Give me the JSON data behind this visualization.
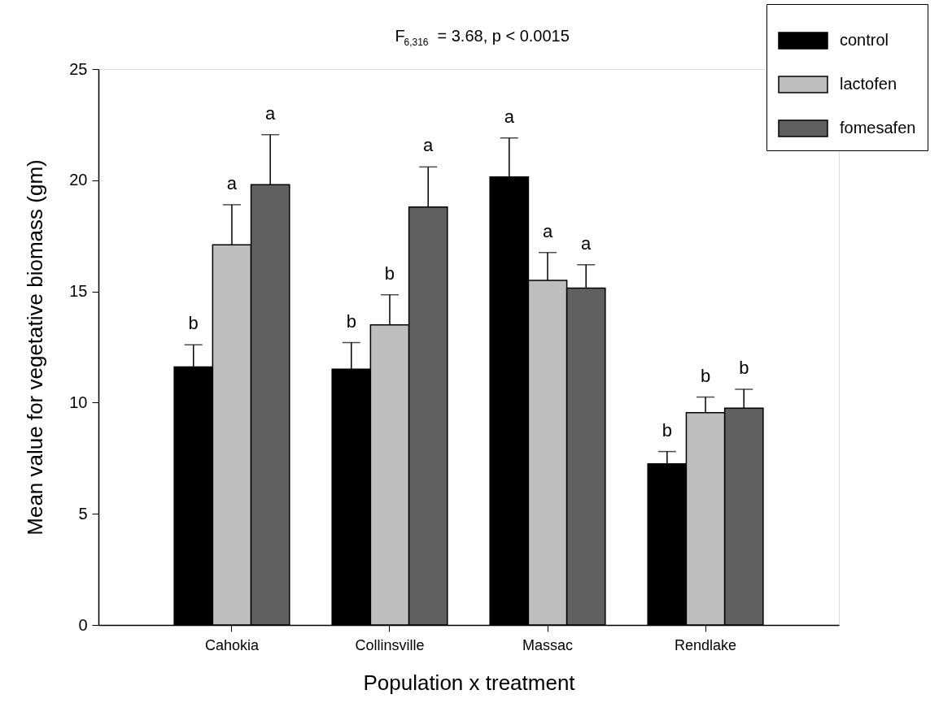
{
  "chart_data": {
    "type": "bar",
    "title": "F$_{6,316}$ = 3.68, p < 0.0015",
    "xlabel": "Population x treatment",
    "ylabel": "Mean value for vegetative biomass (gm)",
    "categories": [
      "Cahokia",
      "Collinsville",
      "Massac",
      "Rendlake"
    ],
    "series": [
      {
        "name": "control",
        "color": "#000000",
        "values": [
          11.6,
          11.5,
          20.15,
          7.25
        ],
        "errors": [
          [
            11.6,
            12.6
          ],
          [
            11.5,
            12.7
          ],
          [
            20.15,
            21.9
          ],
          [
            7.25,
            7.8
          ]
        ]
      },
      {
        "name": "lactofen",
        "color": "#bebebe",
        "values": [
          17.1,
          13.5,
          15.5,
          9.55
        ],
        "errors": [
          [
            17.1,
            18.9
          ],
          [
            13.5,
            14.85
          ],
          [
            15.5,
            16.75
          ],
          [
            9.55,
            10.25
          ]
        ]
      },
      {
        "name": "fomesafen",
        "color": "#606060",
        "values": [
          19.8,
          18.8,
          15.15,
          9.75
        ],
        "errors": [
          [
            19.8,
            22.05
          ],
          [
            18.8,
            20.6
          ],
          [
            15.15,
            16.2
          ],
          [
            9.75,
            10.6
          ]
        ]
      }
    ],
    "annotations": [
      "b",
      "a",
      "a",
      "b",
      "b",
      "a",
      "a",
      "a",
      "a",
      "b",
      "b",
      "b"
    ],
    "ylim": [
      0,
      25
    ],
    "yticks": [
      0,
      5,
      10,
      15,
      20,
      25
    ],
    "grid": false,
    "legend": "top right"
  }
}
